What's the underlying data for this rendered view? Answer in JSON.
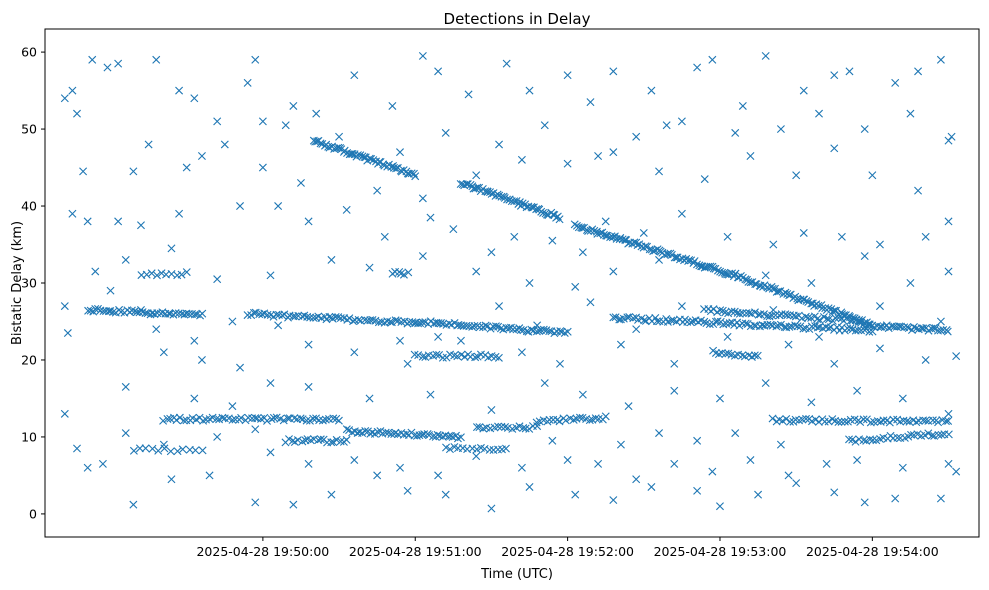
{
  "chart_data": {
    "type": "scatter",
    "title": "Detections in Delay",
    "xlabel": "Time (UTC)",
    "ylabel": "Bistatic Delay (km)",
    "marker": "x",
    "color": "#1f77b4",
    "x_unit": "minutes since 2025-04-28 19:49:00",
    "xlim": [
      -0.43,
      5.7
    ],
    "ylim": [
      -3,
      63
    ],
    "x_ticks": [
      {
        "value": 1,
        "label": "2025-04-28 19:50:00"
      },
      {
        "value": 2,
        "label": "2025-04-28 19:51:00"
      },
      {
        "value": 3,
        "label": "2025-04-28 19:52:00"
      },
      {
        "value": 4,
        "label": "2025-04-28 19:53:00"
      },
      {
        "value": 5,
        "label": "2025-04-28 19:54:00"
      }
    ],
    "y_ticks": [
      {
        "value": 0,
        "label": "0"
      },
      {
        "value": 10,
        "label": "10"
      },
      {
        "value": 20,
        "label": "20"
      },
      {
        "value": 30,
        "label": "30"
      },
      {
        "value": 40,
        "label": "40"
      },
      {
        "value": 50,
        "label": "50"
      },
      {
        "value": 60,
        "label": "60"
      }
    ],
    "tracks": [
      {
        "name": "descending-track-a",
        "x_start": 1.33,
        "x_end": 2.0,
        "y_start": 48.5,
        "y_end": 44.0,
        "n": 55
      },
      {
        "name": "descending-track-b",
        "x_start": 2.3,
        "x_end": 2.95,
        "y_start": 43.0,
        "y_end": 38.5,
        "n": 55
      },
      {
        "name": "descending-track-c",
        "x_start": 3.05,
        "x_end": 4.1,
        "y_start": 37.5,
        "y_end": 31.0,
        "n": 85
      },
      {
        "name": "descending-track-d",
        "x_start": 4.1,
        "x_end": 5.0,
        "y_start": 31.0,
        "y_end": 24.5,
        "n": 70
      },
      {
        "name": "band-26-left",
        "x_start": -0.15,
        "x_end": 0.6,
        "y_start": 26.5,
        "y_end": 25.8,
        "n": 45
      },
      {
        "name": "band-25-left",
        "x_start": 0.9,
        "x_end": 2.0,
        "y_start": 26.0,
        "y_end": 24.8,
        "n": 60
      },
      {
        "name": "band-24-mid",
        "x_start": 2.0,
        "x_end": 3.0,
        "y_start": 25.0,
        "y_end": 23.5,
        "n": 60
      },
      {
        "name": "band-25-right",
        "x_start": 3.3,
        "x_end": 5.0,
        "y_start": 25.5,
        "y_end": 23.8,
        "n": 95
      },
      {
        "name": "band-26-right",
        "x_start": 3.9,
        "x_end": 4.95,
        "y_start": 26.5,
        "y_end": 25.0,
        "n": 55
      },
      {
        "name": "band-24-end",
        "x_start": 4.95,
        "x_end": 5.5,
        "y_start": 24.5,
        "y_end": 23.8,
        "n": 35
      },
      {
        "name": "band-20",
        "x_start": 2.0,
        "x_end": 2.55,
        "y_start": 20.5,
        "y_end": 20.5,
        "n": 25
      },
      {
        "name": "band-21",
        "x_start": 3.95,
        "x_end": 4.25,
        "y_start": 21.0,
        "y_end": 20.5,
        "n": 15
      },
      {
        "name": "band-12-left",
        "x_start": 0.35,
        "x_end": 1.5,
        "y_start": 12.3,
        "y_end": 12.3,
        "n": 55
      },
      {
        "name": "band-10-mid",
        "x_start": 1.55,
        "x_end": 2.3,
        "y_start": 10.8,
        "y_end": 10.0,
        "n": 45
      },
      {
        "name": "band-9-left",
        "x_start": 1.15,
        "x_end": 1.55,
        "y_start": 9.5,
        "y_end": 9.5,
        "n": 20
      },
      {
        "name": "band-8-mid",
        "x_start": 2.2,
        "x_end": 2.6,
        "y_start": 8.5,
        "y_end": 8.5,
        "n": 15
      },
      {
        "name": "band-11-mid",
        "x_start": 2.4,
        "x_end": 2.8,
        "y_start": 11.2,
        "y_end": 11.2,
        "n": 18
      },
      {
        "name": "band-12-mid",
        "x_start": 2.8,
        "x_end": 3.25,
        "y_start": 12.0,
        "y_end": 12.5,
        "n": 22
      },
      {
        "name": "band-12-right",
        "x_start": 4.35,
        "x_end": 5.5,
        "y_start": 12.2,
        "y_end": 12.0,
        "n": 55
      },
      {
        "name": "band-10-right",
        "x_start": 4.85,
        "x_end": 5.5,
        "y_start": 9.5,
        "y_end": 10.5,
        "n": 30
      },
      {
        "name": "band-8-right",
        "x_start": 0.15,
        "x_end": 0.6,
        "y_start": 8.3,
        "y_end": 8.3,
        "n": 12
      },
      {
        "name": "band-31-left",
        "x_start": 0.2,
        "x_end": 0.5,
        "y_start": 31.2,
        "y_end": 31.2,
        "n": 10
      },
      {
        "name": "band-31-mid",
        "x_start": 1.85,
        "x_end": 1.95,
        "y_start": 31.3,
        "y_end": 31.3,
        "n": 6
      }
    ],
    "scatter_points": [
      [
        -0.3,
        54
      ],
      [
        -0.25,
        55
      ],
      [
        -0.22,
        52
      ],
      [
        -0.12,
        59
      ],
      [
        -0.02,
        58
      ],
      [
        0.05,
        58.5
      ],
      [
        0.3,
        59
      ],
      [
        0.45,
        55
      ],
      [
        0.55,
        54
      ],
      [
        0.7,
        51
      ],
      [
        0.9,
        56
      ],
      [
        0.95,
        59
      ],
      [
        1.0,
        51
      ],
      [
        1.2,
        53
      ],
      [
        1.35,
        52
      ],
      [
        1.6,
        57
      ],
      [
        1.85,
        53
      ],
      [
        2.05,
        59.5
      ],
      [
        2.15,
        57.5
      ],
      [
        2.35,
        54.5
      ],
      [
        2.6,
        58.5
      ],
      [
        2.75,
        55
      ],
      [
        3.0,
        57
      ],
      [
        3.15,
        53.5
      ],
      [
        3.3,
        57.5
      ],
      [
        3.55,
        55
      ],
      [
        3.65,
        50.5
      ],
      [
        3.85,
        58
      ],
      [
        3.95,
        59
      ],
      [
        4.15,
        53
      ],
      [
        4.3,
        59.5
      ],
      [
        4.55,
        55
      ],
      [
        4.75,
        57
      ],
      [
        4.85,
        57.5
      ],
      [
        5.15,
        56
      ],
      [
        5.3,
        57.5
      ],
      [
        5.45,
        59
      ],
      [
        -0.25,
        39
      ],
      [
        -0.15,
        38
      ],
      [
        0.05,
        38
      ],
      [
        0.2,
        37.5
      ],
      [
        0.45,
        39
      ],
      [
        0.85,
        40
      ],
      [
        1.1,
        40
      ],
      [
        1.3,
        38
      ],
      [
        1.55,
        39.5
      ],
      [
        1.8,
        36
      ],
      [
        2.1,
        38.5
      ],
      [
        2.25,
        37
      ],
      [
        2.5,
        34
      ],
      [
        2.65,
        36
      ],
      [
        2.9,
        35.5
      ],
      [
        3.1,
        34
      ],
      [
        3.25,
        38
      ],
      [
        3.5,
        36.5
      ],
      [
        3.75,
        39
      ],
      [
        4.05,
        36
      ],
      [
        4.35,
        35
      ],
      [
        4.55,
        36.5
      ],
      [
        4.8,
        36
      ],
      [
        5.05,
        35
      ],
      [
        5.35,
        36
      ],
      [
        5.5,
        38
      ],
      [
        -0.3,
        27
      ],
      [
        -0.28,
        23.5
      ],
      [
        -0.3,
        13
      ],
      [
        -0.22,
        8.5
      ],
      [
        -0.15,
        6
      ],
      [
        -0.05,
        6.5
      ],
      [
        0.15,
        1.2
      ],
      [
        0.4,
        4.5
      ],
      [
        0.65,
        5
      ],
      [
        0.95,
        1.5
      ],
      [
        1.2,
        1.2
      ],
      [
        1.45,
        2.5
      ],
      [
        1.75,
        5
      ],
      [
        1.95,
        3
      ],
      [
        2.2,
        2.5
      ],
      [
        2.5,
        0.7
      ],
      [
        2.75,
        3.5
      ],
      [
        3.05,
        2.5
      ],
      [
        3.3,
        1.8
      ],
      [
        3.55,
        3.5
      ],
      [
        3.85,
        3
      ],
      [
        4.0,
        1
      ],
      [
        4.25,
        2.5
      ],
      [
        4.5,
        4
      ],
      [
        4.75,
        2.8
      ],
      [
        4.95,
        1.5
      ],
      [
        5.15,
        2
      ],
      [
        5.45,
        2
      ],
      [
        5.55,
        5.5
      ],
      [
        0.1,
        16.5
      ],
      [
        0.55,
        15
      ],
      [
        0.8,
        14
      ],
      [
        1.05,
        17
      ],
      [
        1.3,
        16.5
      ],
      [
        1.7,
        15
      ],
      [
        2.1,
        15.5
      ],
      [
        2.5,
        13.5
      ],
      [
        2.85,
        17
      ],
      [
        3.1,
        15.5
      ],
      [
        3.4,
        14
      ],
      [
        3.7,
        16
      ],
      [
        4.0,
        15
      ],
      [
        4.3,
        17
      ],
      [
        4.6,
        14.5
      ],
      [
        4.9,
        16
      ],
      [
        5.2,
        15
      ],
      [
        5.5,
        13
      ],
      [
        0.35,
        21
      ],
      [
        0.6,
        20
      ],
      [
        0.85,
        19
      ],
      [
        1.3,
        22
      ],
      [
        1.6,
        21
      ],
      [
        1.95,
        19.5
      ],
      [
        2.3,
        22.5
      ],
      [
        2.7,
        21
      ],
      [
        2.95,
        19.5
      ],
      [
        3.35,
        22
      ],
      [
        3.7,
        19.5
      ],
      [
        4.45,
        22
      ],
      [
        4.75,
        19.5
      ],
      [
        5.05,
        21.5
      ],
      [
        5.35,
        20
      ],
      [
        5.55,
        20.5
      ],
      [
        0.1,
        33
      ],
      [
        0.4,
        34.5
      ],
      [
        0.7,
        30.5
      ],
      [
        1.05,
        31
      ],
      [
        1.45,
        33
      ],
      [
        1.7,
        32
      ],
      [
        2.05,
        33.5
      ],
      [
        2.4,
        31.5
      ],
      [
        2.75,
        30
      ],
      [
        3.05,
        29.5
      ],
      [
        3.3,
        31.5
      ],
      [
        3.6,
        33
      ],
      [
        3.9,
        32
      ],
      [
        4.3,
        31
      ],
      [
        4.6,
        30
      ],
      [
        4.95,
        33.5
      ],
      [
        5.25,
        30
      ],
      [
        5.5,
        31.5
      ],
      [
        0.15,
        44.5
      ],
      [
        0.5,
        45
      ],
      [
        0.75,
        48
      ],
      [
        1.0,
        45
      ],
      [
        1.25,
        43
      ],
      [
        1.75,
        42
      ],
      [
        2.05,
        41
      ],
      [
        2.4,
        44
      ],
      [
        2.7,
        46
      ],
      [
        3.0,
        45.5
      ],
      [
        3.3,
        47
      ],
      [
        3.6,
        44.5
      ],
      [
        3.9,
        43.5
      ],
      [
        4.2,
        46.5
      ],
      [
        4.5,
        44
      ],
      [
        4.75,
        47.5
      ],
      [
        5.0,
        44
      ],
      [
        5.3,
        42
      ],
      [
        5.5,
        48.5
      ],
      [
        -0.18,
        44.5
      ],
      [
        0.25,
        48
      ],
      [
        0.6,
        46.5
      ],
      [
        1.15,
        50.5
      ],
      [
        1.5,
        49
      ],
      [
        1.9,
        47
      ],
      [
        2.2,
        49.5
      ],
      [
        2.55,
        48
      ],
      [
        2.85,
        50.5
      ],
      [
        3.2,
        46.5
      ],
      [
        3.45,
        49
      ],
      [
        3.75,
        51
      ],
      [
        4.1,
        49.5
      ],
      [
        4.4,
        50
      ],
      [
        4.65,
        52
      ],
      [
        4.95,
        50
      ],
      [
        5.25,
        52
      ],
      [
        5.52,
        49
      ],
      [
        1.05,
        8
      ],
      [
        1.3,
        6.5
      ],
      [
        1.6,
        7
      ],
      [
        1.9,
        6
      ],
      [
        2.15,
        5
      ],
      [
        2.4,
        7.5
      ],
      [
        2.7,
        6
      ],
      [
        3.0,
        7
      ],
      [
        3.2,
        6.5
      ],
      [
        3.45,
        4.5
      ],
      [
        3.7,
        6.5
      ],
      [
        3.95,
        5.5
      ],
      [
        4.2,
        7
      ],
      [
        4.45,
        5
      ],
      [
        4.7,
        6.5
      ],
      [
        4.9,
        7
      ],
      [
        5.2,
        6
      ],
      [
        5.5,
        6.5
      ],
      [
        0.1,
        10.5
      ],
      [
        0.35,
        9
      ],
      [
        0.7,
        10
      ],
      [
        0.95,
        11
      ],
      [
        2.9,
        9.5
      ],
      [
        3.35,
        9
      ],
      [
        3.6,
        10.5
      ],
      [
        3.85,
        9.5
      ],
      [
        4.1,
        10.5
      ],
      [
        4.4,
        9
      ],
      [
        -0.1,
        31.5
      ],
      [
        0.0,
        29
      ],
      [
        0.2,
        26.5
      ],
      [
        0.3,
        24
      ],
      [
        0.55,
        22.5
      ],
      [
        0.8,
        25
      ],
      [
        1.1,
        24.5
      ],
      [
        1.45,
        25.5
      ],
      [
        1.9,
        22.5
      ],
      [
        2.15,
        23
      ],
      [
        2.55,
        27
      ],
      [
        2.8,
        24.5
      ],
      [
        3.15,
        27.5
      ],
      [
        3.45,
        24
      ],
      [
        3.75,
        27
      ],
      [
        4.05,
        23
      ],
      [
        4.35,
        26.5
      ],
      [
        4.65,
        23
      ],
      [
        5.05,
        27
      ],
      [
        5.45,
        25
      ]
    ]
  }
}
